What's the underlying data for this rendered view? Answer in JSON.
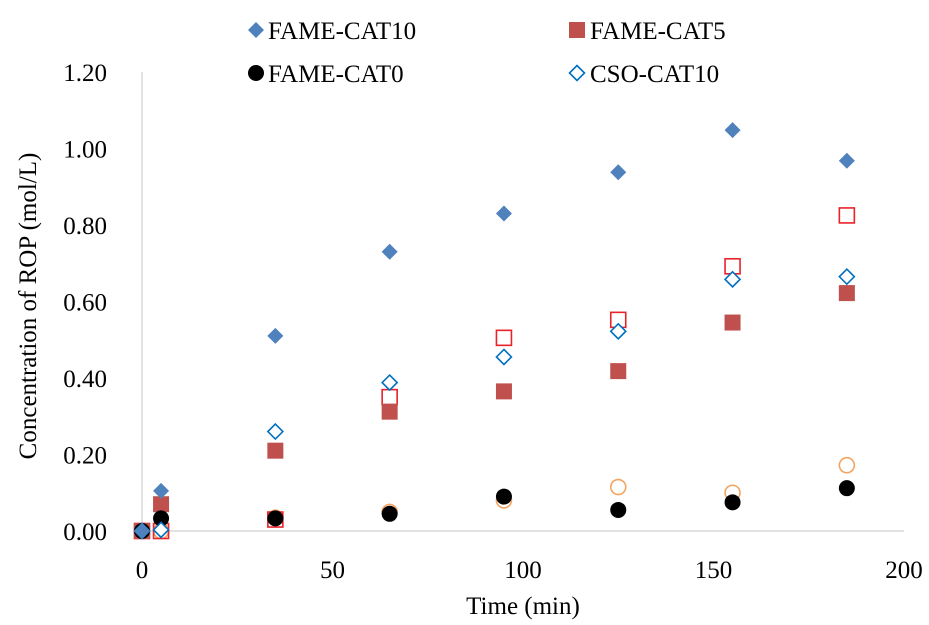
{
  "chart_data": {
    "type": "scatter",
    "title": "",
    "xlabel": "Time (min)",
    "ylabel": "Concentration of ROP (mol/L)",
    "xlim": [
      0,
      200
    ],
    "ylim": [
      0,
      1.2
    ],
    "x_ticks": [
      "0",
      "50",
      "100",
      "150",
      "200"
    ],
    "y_ticks": [
      "0.00",
      "0.20",
      "0.40",
      "0.60",
      "0.80",
      "1.00",
      "1.20"
    ],
    "grid": false,
    "legend_position": "top",
    "series": [
      {
        "name": "FAME-CAT10",
        "marker": "filled-diamond",
        "color": "#4f81bd",
        "in_legend": true,
        "points": [
          [
            0,
            0.0
          ],
          [
            5,
            0.105
          ],
          [
            35,
            0.51
          ],
          [
            65,
            0.73
          ],
          [
            95,
            0.83
          ],
          [
            125,
            0.938
          ],
          [
            155,
            1.048
          ],
          [
            185,
            0.968
          ]
        ]
      },
      {
        "name": "FAME-CAT5",
        "marker": "filled-square",
        "color": "#c0504d",
        "in_legend": true,
        "points": [
          [
            0,
            0.0
          ],
          [
            5,
            0.07
          ],
          [
            35,
            0.21
          ],
          [
            65,
            0.312
          ],
          [
            95,
            0.365
          ],
          [
            125,
            0.418
          ],
          [
            155,
            0.545
          ],
          [
            185,
            0.622
          ]
        ]
      },
      {
        "name": "FAME-CAT0",
        "marker": "filled-circle",
        "color": "#000000",
        "in_legend": true,
        "points": [
          [
            0,
            0.0
          ],
          [
            5,
            0.033
          ],
          [
            35,
            0.033
          ],
          [
            65,
            0.045
          ],
          [
            95,
            0.09
          ],
          [
            125,
            0.055
          ],
          [
            155,
            0.075
          ],
          [
            185,
            0.112
          ]
        ]
      },
      {
        "name": "CSO-CAT10",
        "marker": "open-diamond",
        "color": "#0070c0",
        "in_legend": true,
        "points": [
          [
            0,
            0.0
          ],
          [
            5,
            0.003
          ],
          [
            35,
            0.26
          ],
          [
            65,
            0.388
          ],
          [
            95,
            0.455
          ],
          [
            125,
            0.522
          ],
          [
            155,
            0.658
          ],
          [
            185,
            0.665
          ]
        ]
      },
      {
        "name": "",
        "marker": "open-square",
        "color": "#e8222a",
        "in_legend": false,
        "points": [
          [
            0,
            0.0
          ],
          [
            5,
            0.0
          ],
          [
            35,
            0.03
          ],
          [
            65,
            0.35
          ],
          [
            95,
            0.505
          ],
          [
            125,
            0.552
          ],
          [
            155,
            0.692
          ],
          [
            185,
            0.825
          ]
        ]
      },
      {
        "name": "",
        "marker": "open-circle",
        "color": "#f4a460",
        "in_legend": false,
        "points": [
          [
            0,
            0.0
          ],
          [
            5,
            0.0
          ],
          [
            35,
            0.035
          ],
          [
            65,
            0.05
          ],
          [
            95,
            0.08
          ],
          [
            125,
            0.115
          ],
          [
            155,
            0.1
          ],
          [
            185,
            0.172
          ]
        ]
      }
    ]
  }
}
